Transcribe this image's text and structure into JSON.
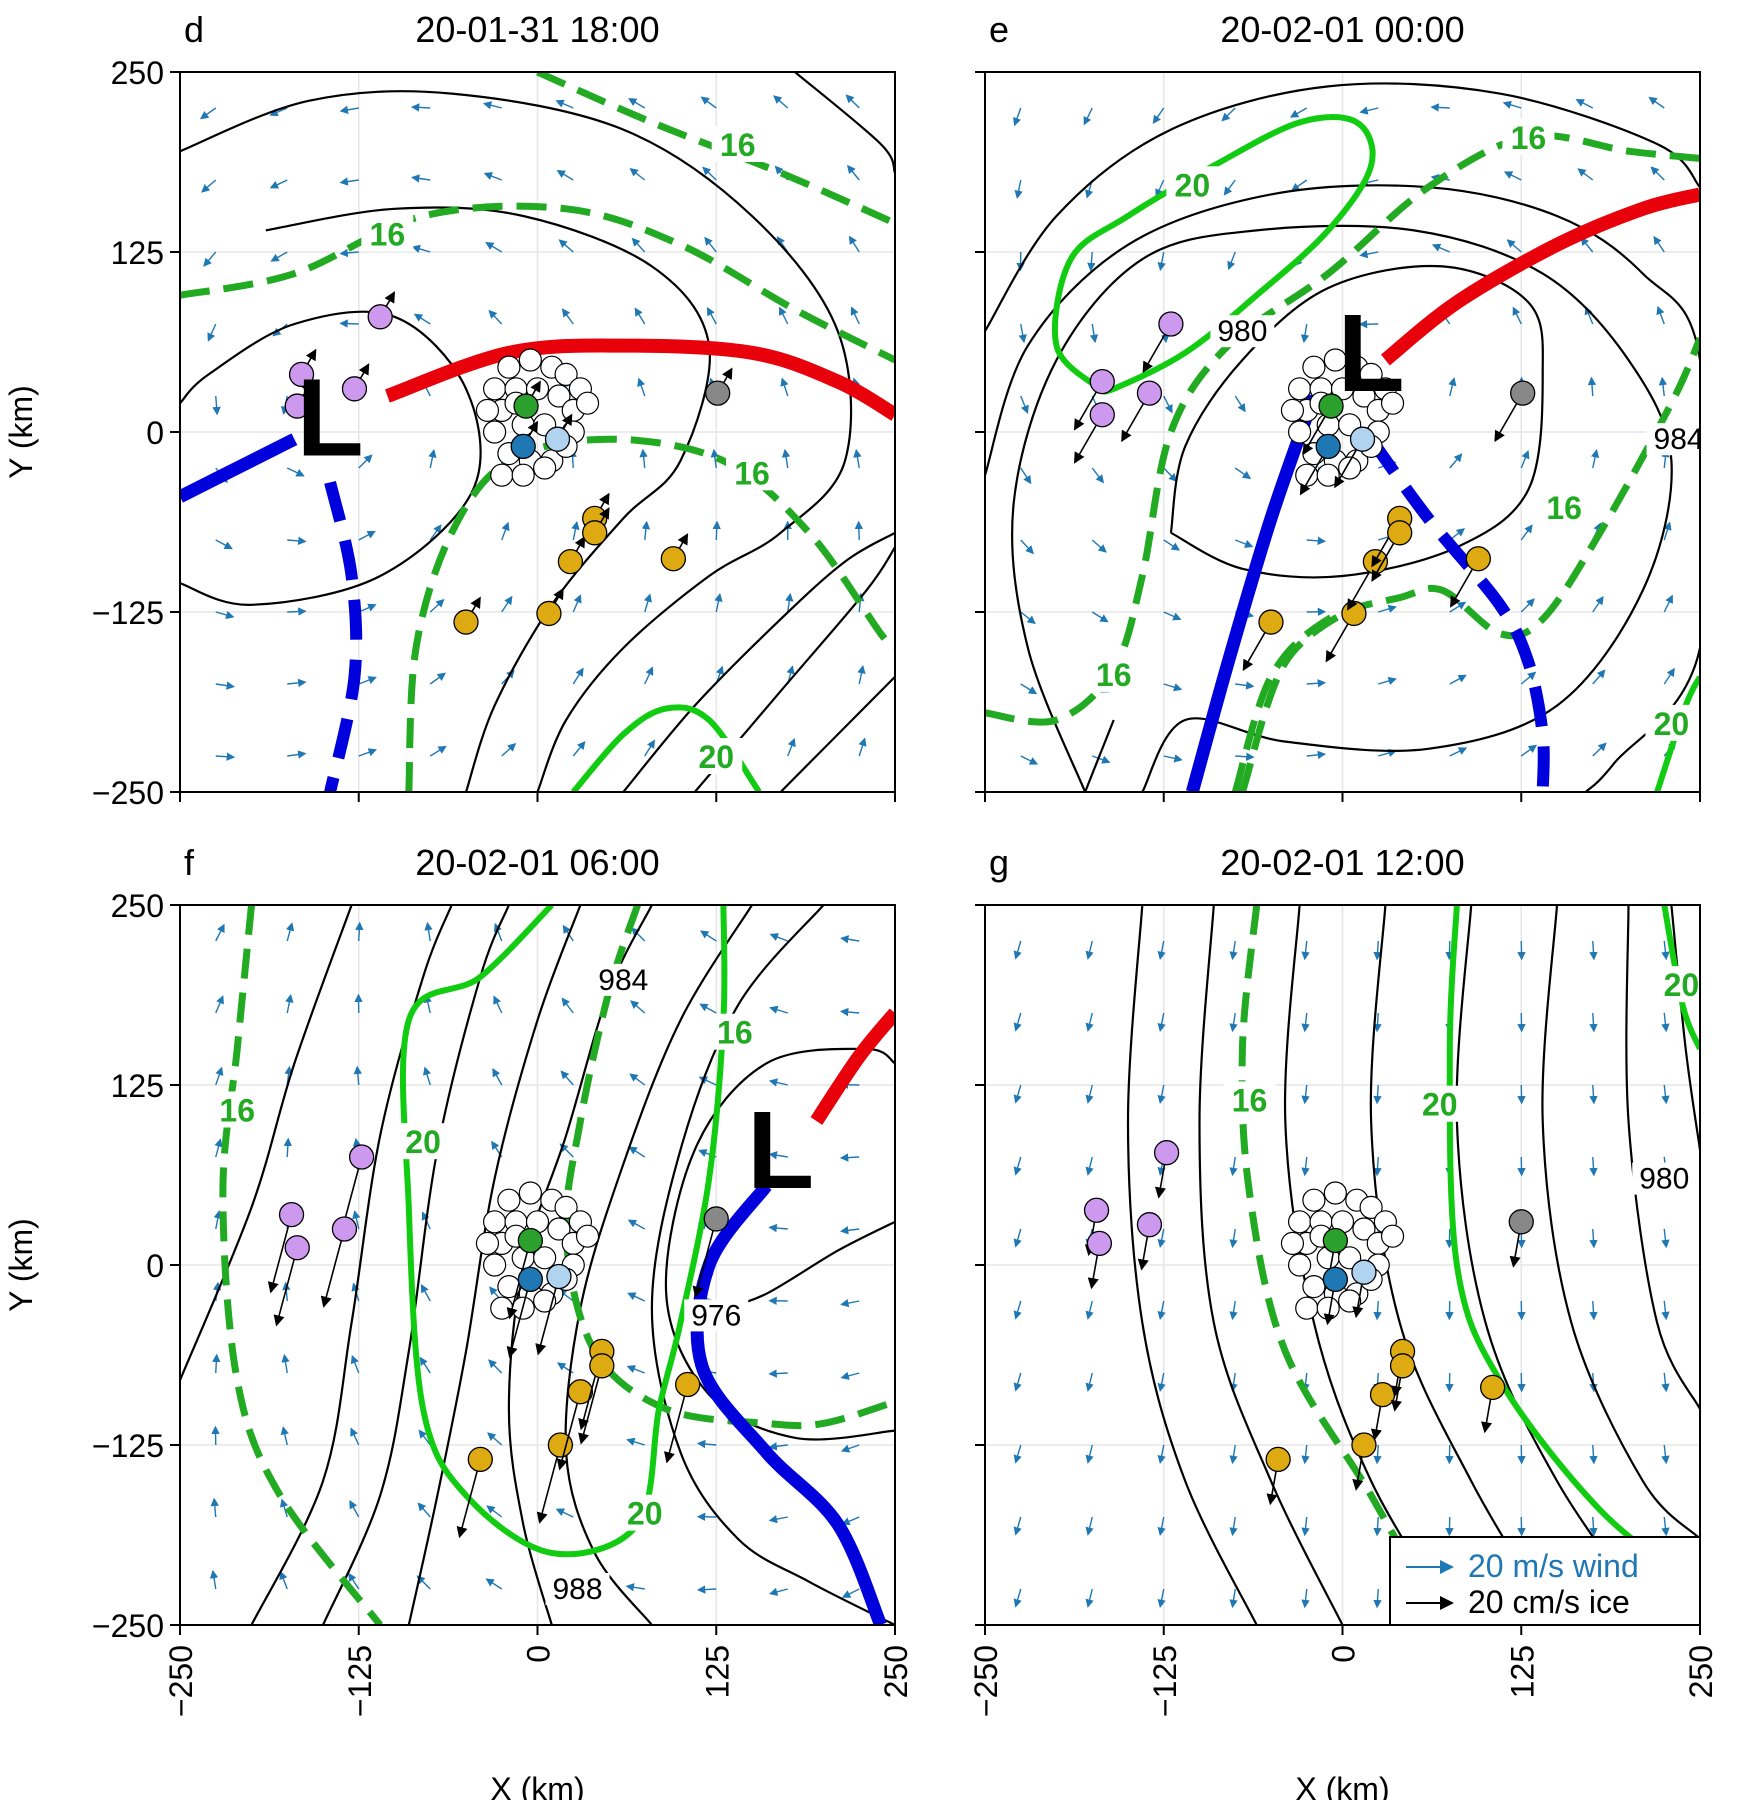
{
  "figure": {
    "xlabel": "X (km)",
    "ylabel": "Y (km)",
    "xticks": [
      -250,
      -125,
      0,
      125,
      250
    ],
    "yticks": [
      -250,
      -125,
      0,
      125,
      250
    ],
    "tick_labels": [
      "−250",
      "−125",
      "0",
      "125",
      "250"
    ],
    "legend": {
      "wind_label": "20 m/s wind",
      "ice_label": "20 cm/s ice",
      "wind_color": "#1f77b4",
      "ice_color": "#000000"
    },
    "colors": {
      "isobar": "#000000",
      "warm_front": "#e8000b",
      "cold_front": "#0000dd",
      "wind_contour_16": "#22aa22",
      "wind_contour_20": "#11cc11",
      "wind_arrow": "#1f77b4",
      "buoy_purple": "#cc99ee",
      "buoy_gold": "#ddaa11",
      "buoy_gray": "#888888",
      "buoy_green": "#2ca02c",
      "buoy_blue": "#1f77b4",
      "buoy_lightblue": "#b0d4f0",
      "buoy_white": "#ffffff"
    }
  },
  "chart_data": [
    {
      "type": "map",
      "panel": "d",
      "title": "20-01-31 18:00",
      "xlim": [
        -250,
        250
      ],
      "ylim": [
        -250,
        250
      ],
      "low_center": {
        "label": "L",
        "x": -145,
        "y": 10
      },
      "isobar_labels": [],
      "wind_speed_labels": [
        {
          "text": "16",
          "x": 140,
          "y": 200
        },
        {
          "text": "16",
          "x": -105,
          "y": 138
        },
        {
          "text": "16",
          "x": 150,
          "y": -28
        },
        {
          "text": "20",
          "x": 125,
          "y": -225
        }
      ],
      "buoys_purple": [
        [
          -110,
          80
        ],
        [
          -165,
          40
        ],
        [
          -128,
          30
        ],
        [
          -168,
          18
        ]
      ],
      "buoys_gold": [
        [
          -50,
          -132
        ],
        [
          8,
          -126
        ],
        [
          23,
          -90
        ],
        [
          40,
          -60
        ],
        [
          40,
          -70
        ],
        [
          95,
          -88
        ]
      ],
      "buoys_gray": [
        [
          126,
          27
        ]
      ],
      "buoys_green": [
        [
          -8,
          18
        ]
      ],
      "buoys_blue": [
        [
          -10,
          -10
        ]
      ],
      "buoys_lightblue": [
        [
          14,
          -5
        ]
      ]
    },
    {
      "type": "map",
      "panel": "e",
      "title": "20-02-01 00:00",
      "xlim": [
        -250,
        250
      ],
      "ylim": [
        -250,
        250
      ],
      "low_center": {
        "label": "L",
        "x": 20,
        "y": 55
      },
      "isobar_labels": [
        {
          "text": "980",
          "x": -70,
          "y": 70
        },
        {
          "text": "984",
          "x": 235,
          "y": -5
        }
      ],
      "wind_speed_labels": [
        {
          "text": "20",
          "x": -105,
          "y": 172
        },
        {
          "text": "16",
          "x": 130,
          "y": 205
        },
        {
          "text": "16",
          "x": 155,
          "y": -52
        },
        {
          "text": "16",
          "x": -160,
          "y": -168
        },
        {
          "text": "20",
          "x": 230,
          "y": -202
        }
      ],
      "buoys_purple": [
        [
          -120,
          75
        ],
        [
          -168,
          35
        ],
        [
          -168,
          12
        ],
        [
          -135,
          27
        ]
      ],
      "buoys_gold": [
        [
          -50,
          -132
        ],
        [
          8,
          -126
        ],
        [
          23,
          -90
        ],
        [
          40,
          -60
        ],
        [
          40,
          -70
        ],
        [
          95,
          -88
        ]
      ],
      "buoys_gray": [
        [
          126,
          27
        ]
      ],
      "buoys_green": [
        [
          -8,
          18
        ]
      ],
      "buoys_blue": [
        [
          -10,
          -10
        ]
      ],
      "buoys_lightblue": [
        [
          14,
          -5
        ]
      ]
    },
    {
      "type": "map",
      "panel": "f",
      "title": "20-02-01 06:00",
      "xlim": [
        -250,
        250
      ],
      "ylim": [
        -250,
        250
      ],
      "low_center": {
        "label": "L",
        "x": 170,
        "y": 80
      },
      "isobar_labels": [
        {
          "text": "984",
          "x": 60,
          "y": 198
        },
        {
          "text": "976",
          "x": 125,
          "y": -35
        },
        {
          "text": "988",
          "x": 28,
          "y": -225
        }
      ],
      "wind_speed_labels": [
        {
          "text": "16",
          "x": -210,
          "y": 108
        },
        {
          "text": "20",
          "x": -80,
          "y": 86
        },
        {
          "text": "16",
          "x": 138,
          "y": 162
        },
        {
          "text": "20",
          "x": 75,
          "y": -172
        }
      ],
      "buoys_purple": [
        [
          -123,
          75
        ],
        [
          -172,
          35
        ],
        [
          -168,
          12
        ],
        [
          -135,
          25
        ]
      ],
      "buoys_gold": [
        [
          -40,
          -135
        ],
        [
          16,
          -125
        ],
        [
          30,
          -88
        ],
        [
          45,
          -60
        ],
        [
          45,
          -70
        ],
        [
          105,
          -83
        ]
      ],
      "buoys_gray": [
        [
          125,
          32
        ]
      ],
      "buoys_green": [
        [
          -5,
          17
        ]
      ],
      "buoys_blue": [
        [
          -5,
          -10
        ]
      ],
      "buoys_lightblue": [
        [
          15,
          -8
        ]
      ]
    },
    {
      "type": "map",
      "panel": "g",
      "title": "20-02-01 12:00",
      "xlim": [
        -250,
        250
      ],
      "ylim": [
        -250,
        250
      ],
      "low_center": null,
      "isobar_labels": [
        {
          "text": "980",
          "x": 225,
          "y": 60
        }
      ],
      "wind_speed_labels": [
        {
          "text": "16",
          "x": -65,
          "y": 115
        },
        {
          "text": "20",
          "x": 68,
          "y": 112
        },
        {
          "text": "20",
          "x": 237,
          "y": 195
        }
      ],
      "buoys_purple": [
        [
          -123,
          78
        ],
        [
          -172,
          38
        ],
        [
          -170,
          15
        ],
        [
          -135,
          28
        ]
      ],
      "buoys_gold": [
        [
          -45,
          -135
        ],
        [
          15,
          -125
        ],
        [
          28,
          -90
        ],
        [
          42,
          -60
        ],
        [
          42,
          -70
        ],
        [
          105,
          -85
        ]
      ],
      "buoys_gray": [
        [
          125,
          30
        ]
      ],
      "buoys_green": [
        [
          -5,
          17
        ]
      ],
      "buoys_blue": [
        [
          -5,
          -10
        ]
      ],
      "buoys_lightblue": [
        [
          15,
          -5
        ]
      ]
    }
  ]
}
